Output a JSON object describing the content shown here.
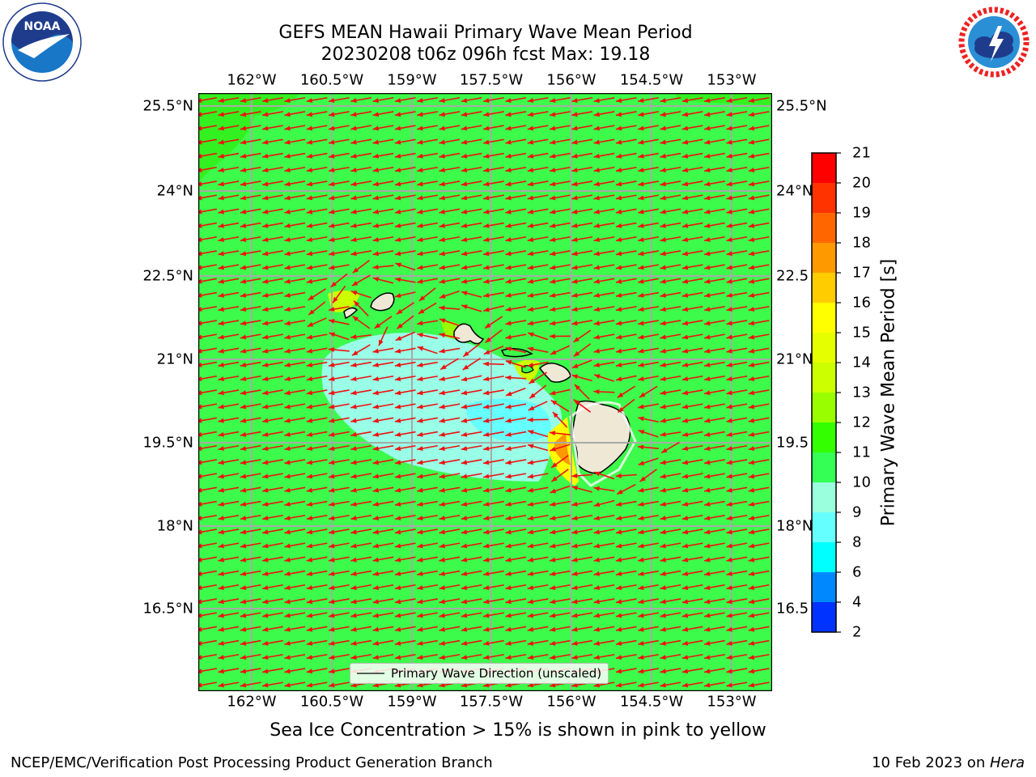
{
  "header": {
    "title_line1": "GEFS MEAN Hawaii Primary Wave Mean Period",
    "title_line2": "20230208 t06z 096h fcst   Max: 19.18"
  },
  "logos": {
    "left": {
      "name": "noaa-logo",
      "text": "NOAA",
      "ring_text": "NATIONAL OCEANIC AND ATMOSPHERIC ADMINISTRATION · U.S. DEPARTMENT OF COMMERCE"
    },
    "right": {
      "name": "nws-logo",
      "ring_text": "NATIONAL WEATHER SERVICE"
    }
  },
  "map": {
    "lon_ticks": [
      "162°W",
      "160.5°W",
      "159°W",
      "157.5°W",
      "156°W",
      "154.5°W",
      "153°W"
    ],
    "lat_ticks": [
      "25.5°N",
      "24°N",
      "22.5°N",
      "21°N",
      "19.5°N",
      "18°N",
      "16.5°N"
    ],
    "lat_ticks_right": [
      "25.5°N",
      "24°N",
      "22.5",
      "21°N",
      "19.5",
      "18°N",
      "16.5"
    ],
    "lon_range": [
      -163.0,
      -152.7
    ],
    "lat_range": [
      15.0,
      25.7
    ],
    "background_color": "#3cfb4a",
    "arrow_color": "#ee1111",
    "legend": {
      "label": "Primary Wave Direction (unscaled)"
    }
  },
  "colorbar": {
    "label": "Primary Wave Mean Period [s]",
    "ticks": [
      "21",
      "20",
      "19",
      "18",
      "17",
      "16",
      "15",
      "14",
      "13",
      "12",
      "11",
      "10",
      "9",
      "8",
      "6",
      "4",
      "2"
    ],
    "colors": [
      "#ff0000",
      "#ff3300",
      "#ff6600",
      "#ff9900",
      "#ffcc00",
      "#ffff00",
      "#e6ff00",
      "#ccff00",
      "#99ff00",
      "#33ff00",
      "#33ff55",
      "#99ffdd",
      "#66ffff",
      "#00ffff",
      "#0088ff",
      "#0033ff"
    ]
  },
  "note": "Sea Ice Concentration > 15% is shown in pink to yellow",
  "footer": {
    "left": "NCEP/EMC/Verification Post Processing Product Generation Branch",
    "right_prefix": "10 Feb 2023 on ",
    "right_machine": "Hera"
  }
}
